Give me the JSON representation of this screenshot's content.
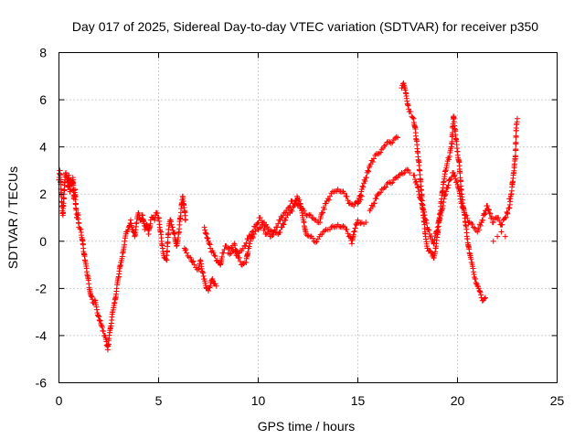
{
  "chart_data": {
    "type": "scatter",
    "title": "Day 017 of 2025, Sidereal Day-to-day VTEC variation (SDTVAR) for receiver p350",
    "xlabel": "GPS time / hours",
    "ylabel": "SDTVAR / TECUs",
    "xlim": [
      0,
      25
    ],
    "ylim": [
      -6,
      8
    ],
    "xticks": [
      0,
      5,
      10,
      15,
      20,
      25
    ],
    "yticks": [
      -6,
      -4,
      -2,
      0,
      2,
      4,
      6,
      8
    ],
    "grid": true,
    "marker": "+",
    "series": [
      {
        "name": "SDTVAR",
        "color": "#ff0000",
        "points": [
          [
            0.0,
            2.6
          ],
          [
            0.05,
            3.0
          ],
          [
            0.1,
            2.2
          ],
          [
            0.15,
            1.5
          ],
          [
            0.2,
            1.1
          ],
          [
            0.25,
            2.0
          ],
          [
            0.3,
            2.6
          ],
          [
            0.35,
            2.9
          ],
          [
            0.4,
            2.7
          ],
          [
            0.45,
            2.3
          ],
          [
            0.5,
            2.8
          ],
          [
            0.55,
            2.1
          ],
          [
            0.6,
            2.6
          ],
          [
            0.65,
            2.4
          ],
          [
            0.7,
            2.7
          ],
          [
            0.75,
            1.8
          ],
          [
            0.8,
            2.2
          ],
          [
            0.85,
            1.4
          ],
          [
            0.9,
            1.0
          ],
          [
            0.95,
            1.2
          ],
          [
            1.0,
            0.6
          ],
          [
            1.1,
            0.5
          ],
          [
            1.2,
            -0.1
          ],
          [
            1.3,
            -0.8
          ],
          [
            1.4,
            -1.3
          ],
          [
            1.5,
            -1.8
          ],
          [
            1.6,
            -2.3
          ],
          [
            1.7,
            -2.6
          ],
          [
            1.8,
            -2.5
          ],
          [
            1.9,
            -2.9
          ],
          [
            2.0,
            -3.2
          ],
          [
            2.1,
            -3.5
          ],
          [
            2.2,
            -3.8
          ],
          [
            2.3,
            -4.0
          ],
          [
            2.4,
            -4.4
          ],
          [
            2.45,
            -4.6
          ],
          [
            2.5,
            -4.2
          ],
          [
            2.6,
            -3.6
          ],
          [
            2.7,
            -3.0
          ],
          [
            2.8,
            -2.6
          ],
          [
            2.9,
            -2.0
          ],
          [
            3.0,
            -1.5
          ],
          [
            3.1,
            -0.9
          ],
          [
            3.2,
            -0.5
          ],
          [
            3.3,
            0.0
          ],
          [
            3.4,
            0.4
          ],
          [
            3.5,
            0.6
          ],
          [
            3.6,
            0.9
          ],
          [
            3.7,
            0.5
          ],
          [
            3.8,
            0.2
          ],
          [
            3.9,
            0.8
          ],
          [
            4.0,
            1.2
          ],
          [
            4.1,
            0.9
          ],
          [
            4.2,
            1.1
          ],
          [
            4.3,
            0.5
          ],
          [
            4.4,
            0.7
          ],
          [
            4.5,
            0.3
          ],
          [
            4.6,
            0.9
          ],
          [
            4.7,
            1.0
          ],
          [
            4.8,
            0.9
          ],
          [
            4.9,
            1.2
          ],
          [
            5.0,
            1.0
          ],
          [
            5.1,
            0.4
          ],
          [
            5.2,
            -0.3
          ],
          [
            5.3,
            -0.7
          ],
          [
            5.4,
            -0.8
          ],
          [
            5.5,
            0.5
          ],
          [
            5.6,
            0.9
          ],
          [
            5.7,
            0.6
          ],
          [
            5.8,
            0.3
          ],
          [
            5.9,
            -0.2
          ],
          [
            6.0,
            0.3
          ],
          [
            6.2,
            1.9
          ],
          [
            6.25,
            1.6
          ],
          [
            6.3,
            1.3
          ],
          [
            6.35,
            0.9
          ],
          [
            6.3,
            -0.3
          ],
          [
            6.4,
            -0.5
          ],
          [
            6.6,
            -0.7
          ],
          [
            6.8,
            -1.0
          ],
          [
            7.0,
            -1.2
          ],
          [
            7.1,
            -0.8
          ],
          [
            7.2,
            -1.3
          ],
          [
            7.3,
            -1.6
          ],
          [
            7.4,
            -2.0
          ],
          [
            7.5,
            -2.1
          ],
          [
            7.6,
            -1.9
          ],
          [
            7.7,
            -1.6
          ],
          [
            7.8,
            -1.8
          ],
          [
            7.9,
            -1.9
          ],
          [
            7.3,
            0.6
          ],
          [
            7.4,
            0.3
          ],
          [
            7.5,
            0.0
          ],
          [
            7.6,
            -0.3
          ],
          [
            7.8,
            -0.6
          ],
          [
            8.0,
            -0.9
          ],
          [
            8.1,
            -1.0
          ],
          [
            8.2,
            -0.5
          ],
          [
            8.4,
            -0.2
          ],
          [
            8.6,
            -0.3
          ],
          [
            8.8,
            -0.1
          ],
          [
            9.0,
            -0.7
          ],
          [
            9.2,
            -1.0
          ],
          [
            9.4,
            -0.9
          ],
          [
            9.5,
            -0.3
          ],
          [
            9.6,
            0.0
          ],
          [
            9.8,
            0.3
          ],
          [
            10.0,
            0.5
          ],
          [
            10.2,
            0.7
          ],
          [
            10.4,
            0.3
          ],
          [
            10.6,
            0.2
          ],
          [
            10.8,
            0.4
          ],
          [
            11.0,
            0.3
          ],
          [
            11.2,
            0.6
          ],
          [
            11.4,
            1.0
          ],
          [
            11.6,
            1.2
          ],
          [
            11.8,
            1.5
          ],
          [
            11.95,
            1.9
          ],
          [
            12.1,
            1.6
          ],
          [
            12.2,
            1.2
          ],
          [
            12.3,
            0.8
          ],
          [
            12.4,
            0.3
          ],
          [
            12.6,
            0.2
          ],
          [
            12.8,
            0.0
          ],
          [
            13.0,
            0.1
          ],
          [
            13.2,
            0.3
          ],
          [
            13.4,
            0.5
          ],
          [
            13.6,
            0.5
          ],
          [
            13.8,
            0.6
          ],
          [
            14.0,
            0.7
          ],
          [
            14.2,
            0.6
          ],
          [
            14.4,
            0.5
          ],
          [
            14.6,
            0.2
          ],
          [
            14.7,
            -0.1
          ],
          [
            14.8,
            0.4
          ],
          [
            15.0,
            0.9
          ],
          [
            15.2,
            0.8
          ],
          [
            15.4,
            0.8
          ],
          [
            8.5,
            -0.5
          ],
          [
            8.7,
            -0.4
          ],
          [
            8.9,
            -0.6
          ],
          [
            9.1,
            -0.4
          ],
          [
            9.3,
            -0.2
          ],
          [
            9.5,
            0.1
          ],
          [
            9.7,
            0.4
          ],
          [
            9.9,
            0.7
          ],
          [
            10.1,
            1.0
          ],
          [
            10.3,
            0.8
          ],
          [
            10.5,
            0.5
          ],
          [
            10.7,
            0.4
          ],
          [
            10.9,
            0.6
          ],
          [
            11.1,
            0.9
          ],
          [
            11.3,
            1.2
          ],
          [
            11.5,
            1.4
          ],
          [
            11.7,
            1.7
          ],
          [
            11.9,
            1.6
          ],
          [
            12.1,
            1.4
          ],
          [
            12.3,
            1.3
          ],
          [
            12.5,
            1.1
          ],
          [
            12.7,
            1.0
          ],
          [
            12.9,
            0.9
          ],
          [
            13.1,
            0.8
          ],
          [
            13.2,
            1.2
          ],
          [
            13.4,
            1.6
          ],
          [
            13.6,
            1.9
          ],
          [
            13.8,
            2.1
          ],
          [
            14.0,
            2.2
          ],
          [
            14.2,
            2.1
          ],
          [
            14.4,
            1.9
          ],
          [
            14.6,
            1.6
          ],
          [
            14.8,
            1.5
          ],
          [
            15.0,
            1.7
          ],
          [
            15.2,
            1.9
          ],
          [
            15.0,
            1.6
          ],
          [
            15.2,
            2.2
          ],
          [
            15.4,
            2.7
          ],
          [
            15.6,
            3.2
          ],
          [
            15.8,
            3.5
          ],
          [
            16.0,
            3.7
          ],
          [
            16.2,
            3.9
          ],
          [
            16.4,
            4.1
          ],
          [
            16.6,
            4.2
          ],
          [
            16.8,
            4.3
          ],
          [
            17.0,
            4.4
          ],
          [
            15.6,
            1.3
          ],
          [
            15.8,
            1.6
          ],
          [
            16.0,
            2.0
          ],
          [
            16.2,
            2.2
          ],
          [
            16.4,
            2.3
          ],
          [
            16.6,
            2.5
          ],
          [
            16.8,
            2.6
          ],
          [
            17.0,
            2.7
          ],
          [
            17.2,
            2.9
          ],
          [
            17.4,
            3.0
          ],
          [
            17.6,
            2.9
          ],
          [
            17.2,
            6.5
          ],
          [
            17.3,
            6.7
          ],
          [
            17.4,
            6.3
          ],
          [
            17.5,
            5.8
          ],
          [
            17.6,
            5.5
          ],
          [
            17.8,
            5.2
          ],
          [
            17.9,
            4.6
          ],
          [
            18.0,
            3.8
          ],
          [
            18.1,
            3.0
          ],
          [
            18.2,
            2.0
          ],
          [
            18.3,
            1.0
          ],
          [
            18.4,
            0.2
          ],
          [
            18.5,
            -0.3
          ],
          [
            18.6,
            -0.4
          ],
          [
            18.7,
            -0.5
          ],
          [
            18.8,
            -0.7
          ],
          [
            18.9,
            -0.3
          ],
          [
            19.0,
            0.3
          ],
          [
            19.1,
            1.0
          ],
          [
            19.2,
            1.8
          ],
          [
            19.3,
            2.5
          ],
          [
            19.4,
            3.0
          ],
          [
            19.5,
            3.4
          ],
          [
            19.6,
            3.6
          ],
          [
            19.7,
            4.0
          ],
          [
            19.8,
            5.3
          ],
          [
            19.9,
            4.5
          ],
          [
            20.0,
            3.8
          ],
          [
            20.1,
            3.2
          ],
          [
            20.2,
            2.0
          ],
          [
            20.3,
            1.4
          ],
          [
            20.4,
            0.8
          ],
          [
            20.5,
            0.1
          ],
          [
            20.6,
            -0.5
          ],
          [
            20.7,
            -0.9
          ],
          [
            20.8,
            -1.3
          ],
          [
            20.9,
            -1.6
          ],
          [
            21.0,
            -1.9
          ],
          [
            21.1,
            -2.1
          ],
          [
            21.2,
            -2.4
          ],
          [
            21.3,
            -2.5
          ],
          [
            21.4,
            -2.4
          ],
          [
            17.8,
            2.8
          ],
          [
            18.0,
            2.3
          ],
          [
            18.2,
            1.6
          ],
          [
            18.4,
            0.9
          ],
          [
            18.6,
            0.3
          ],
          [
            18.8,
            -0.1
          ],
          [
            19.0,
            0.6
          ],
          [
            19.2,
            1.3
          ],
          [
            19.4,
            2.0
          ],
          [
            19.6,
            2.6
          ],
          [
            19.8,
            2.9
          ],
          [
            20.0,
            2.4
          ],
          [
            20.2,
            1.6
          ],
          [
            20.4,
            1.1
          ],
          [
            20.6,
            0.8
          ],
          [
            20.8,
            0.6
          ],
          [
            21.0,
            0.4
          ],
          [
            21.2,
            0.8
          ],
          [
            21.4,
            1.3
          ],
          [
            21.5,
            1.5
          ],
          [
            21.6,
            1.2
          ],
          [
            21.8,
            0.8
          ],
          [
            22.0,
            1.0
          ],
          [
            22.2,
            0.7
          ],
          [
            22.4,
            1.0
          ],
          [
            22.6,
            1.4
          ],
          [
            22.7,
            2.0
          ],
          [
            22.8,
            2.8
          ],
          [
            22.9,
            3.5
          ],
          [
            22.95,
            4.8
          ],
          [
            23.0,
            5.2
          ],
          [
            22.85,
            3.2
          ],
          [
            22.75,
            2.4
          ],
          [
            22.6,
            1.8
          ],
          [
            22.5,
            1.2
          ],
          [
            22.4,
            0.2
          ],
          [
            22.2,
            0.4
          ],
          [
            22.0,
            0.2
          ],
          [
            21.8,
            0.0
          ]
        ]
      }
    ]
  }
}
